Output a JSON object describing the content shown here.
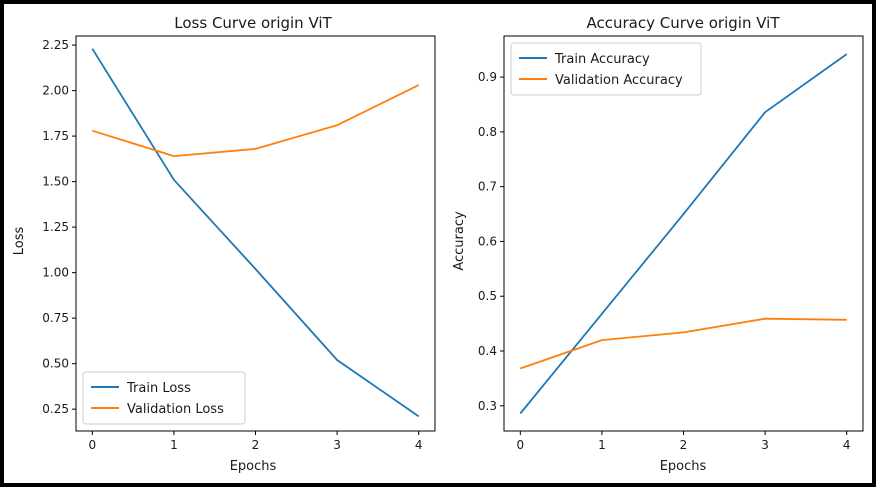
{
  "colors": {
    "train": "#1f77b4",
    "validation": "#ff7f0e",
    "axes": "#000000",
    "legend_border": "#cccccc"
  },
  "chart_data": [
    {
      "type": "line",
      "title": "Loss Curve origin ViT",
      "xlabel": "Epochs",
      "ylabel": "Loss",
      "x": [
        0,
        1,
        2,
        3,
        4
      ],
      "xlim": [
        -0.2,
        4.2
      ],
      "ylim": [
        0.13,
        2.3
      ],
      "xticks": [
        0,
        1,
        2,
        3,
        4
      ],
      "yticks": [
        0.25,
        0.5,
        0.75,
        1.0,
        1.25,
        1.5,
        1.75,
        2.0,
        2.25
      ],
      "ytick_labels": [
        "0.25",
        "0.50",
        "0.75",
        "1.00",
        "1.25",
        "1.50",
        "1.75",
        "2.00",
        "2.25"
      ],
      "grid": false,
      "legend_position": "lower-left",
      "series": [
        {
          "name": "Train Loss",
          "color_key": "train",
          "values": [
            2.23,
            1.51,
            1.02,
            0.52,
            0.21
          ]
        },
        {
          "name": "Validation Loss",
          "color_key": "validation",
          "values": [
            1.78,
            1.64,
            1.68,
            1.81,
            2.03
          ]
        }
      ]
    },
    {
      "type": "line",
      "title": "Accuracy Curve origin ViT",
      "xlabel": "Epochs",
      "ylabel": "Accuracy",
      "x": [
        0,
        1,
        2,
        3,
        4
      ],
      "xlim": [
        -0.2,
        4.2
      ],
      "ylim": [
        0.254,
        0.975
      ],
      "xticks": [
        0,
        1,
        2,
        3,
        4
      ],
      "yticks": [
        0.3,
        0.4,
        0.5,
        0.6,
        0.7,
        0.8,
        0.9
      ],
      "ytick_labels": [
        "0.3",
        "0.4",
        "0.5",
        "0.6",
        "0.7",
        "0.8",
        "0.9"
      ],
      "grid": false,
      "legend_position": "upper-left",
      "series": [
        {
          "name": "Train Accuracy",
          "color_key": "train",
          "values": [
            0.286,
            0.468,
            0.65,
            0.836,
            0.942
          ]
        },
        {
          "name": "Validation Accuracy",
          "color_key": "validation",
          "values": [
            0.368,
            0.42,
            0.434,
            0.459,
            0.457
          ]
        }
      ]
    }
  ]
}
